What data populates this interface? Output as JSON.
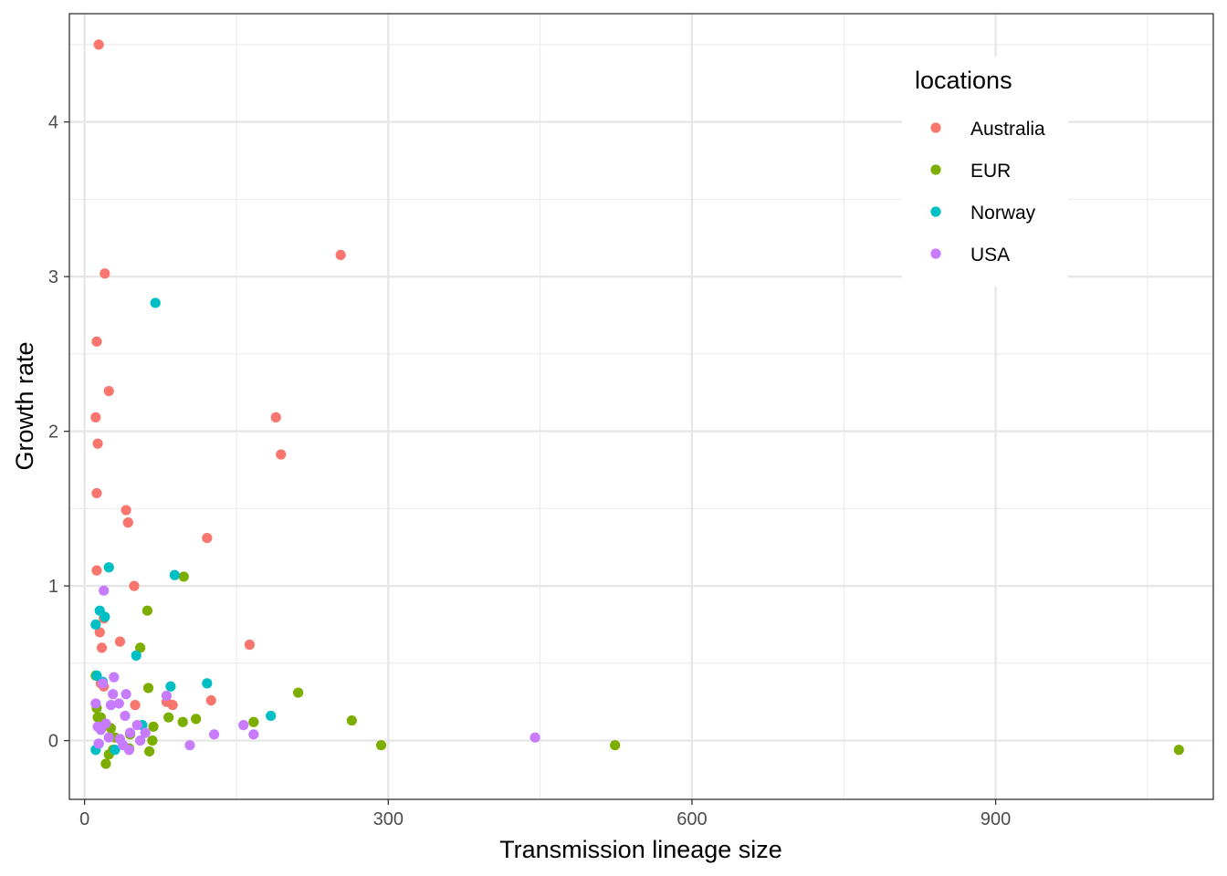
{
  "chart_data": {
    "type": "scatter",
    "xlabel": "Transmission lineage size",
    "ylabel": "Growth rate",
    "xlim": [
      -15,
      1115
    ],
    "ylim": [
      -0.38,
      4.7
    ],
    "x_ticks": [
      0,
      300,
      600,
      900
    ],
    "y_ticks": [
      0,
      1,
      2,
      3,
      4
    ],
    "grid": true,
    "legend": {
      "title": "locations",
      "position": "top-right"
    },
    "series": [
      {
        "name": "Australia",
        "color": "#F8766D",
        "points": [
          [
            14,
            4.5
          ],
          [
            20,
            3.02
          ],
          [
            253,
            3.14
          ],
          [
            12,
            2.58
          ],
          [
            24,
            2.26
          ],
          [
            11,
            2.09
          ],
          [
            189,
            2.09
          ],
          [
            13,
            1.92
          ],
          [
            194,
            1.85
          ],
          [
            12,
            1.6
          ],
          [
            41,
            1.49
          ],
          [
            43,
            1.41
          ],
          [
            121,
            1.31
          ],
          [
            12,
            1.1
          ],
          [
            49,
            1.0
          ],
          [
            19,
            0.79
          ],
          [
            15,
            0.7
          ],
          [
            35,
            0.64
          ],
          [
            17,
            0.6
          ],
          [
            163,
            0.62
          ],
          [
            16,
            0.37
          ],
          [
            19,
            0.35
          ],
          [
            50,
            0.23
          ],
          [
            81,
            0.25
          ],
          [
            87,
            0.23
          ],
          [
            125,
            0.26
          ]
        ]
      },
      {
        "name": "EUR",
        "color": "#7CAE00",
        "points": [
          [
            98,
            1.06
          ],
          [
            62,
            0.84
          ],
          [
            55,
            0.6
          ],
          [
            11,
            0.42
          ],
          [
            63,
            0.34
          ],
          [
            211,
            0.31
          ],
          [
            12,
            0.21
          ],
          [
            13,
            0.15
          ],
          [
            16,
            0.15
          ],
          [
            83,
            0.15
          ],
          [
            110,
            0.14
          ],
          [
            264,
            0.13
          ],
          [
            167,
            0.12
          ],
          [
            97,
            0.12
          ],
          [
            68,
            0.09
          ],
          [
            26,
            0.08
          ],
          [
            45,
            0.04
          ],
          [
            30,
            0.02
          ],
          [
            67,
            0.0
          ],
          [
            293,
            -0.03
          ],
          [
            524,
            -0.03
          ],
          [
            1081,
            -0.06
          ],
          [
            44,
            -0.05
          ],
          [
            64,
            -0.07
          ],
          [
            28,
            -0.06
          ],
          [
            24,
            -0.09
          ],
          [
            21,
            -0.15
          ]
        ]
      },
      {
        "name": "Norway",
        "color": "#00BFC4",
        "points": [
          [
            70,
            2.83
          ],
          [
            24,
            1.12
          ],
          [
            89,
            1.07
          ],
          [
            15,
            0.84
          ],
          [
            20,
            0.8
          ],
          [
            11,
            0.75
          ],
          [
            51,
            0.55
          ],
          [
            12,
            0.42
          ],
          [
            18,
            0.38
          ],
          [
            121,
            0.37
          ],
          [
            85,
            0.35
          ],
          [
            184,
            0.16
          ],
          [
            57,
            0.1
          ],
          [
            14,
            -0.02
          ],
          [
            11,
            -0.06
          ],
          [
            30,
            -0.06
          ]
        ]
      },
      {
        "name": "USA",
        "color": "#C77CFF",
        "points": [
          [
            19,
            0.97
          ],
          [
            29,
            0.41
          ],
          [
            18,
            0.37
          ],
          [
            41,
            0.3
          ],
          [
            28,
            0.3
          ],
          [
            81,
            0.29
          ],
          [
            11,
            0.24
          ],
          [
            34,
            0.24
          ],
          [
            26,
            0.23
          ],
          [
            40,
            0.16
          ],
          [
            21,
            0.11
          ],
          [
            52,
            0.1
          ],
          [
            13,
            0.09
          ],
          [
            16,
            0.07
          ],
          [
            157,
            0.1
          ],
          [
            128,
            0.04
          ],
          [
            167,
            0.04
          ],
          [
            45,
            0.05
          ],
          [
            60,
            0.05
          ],
          [
            24,
            0.02
          ],
          [
            35,
            0.01
          ],
          [
            55,
            0.0
          ],
          [
            445,
            0.02
          ],
          [
            14,
            -0.02
          ],
          [
            38,
            -0.03
          ],
          [
            104,
            -0.03
          ],
          [
            44,
            -0.06
          ]
        ]
      }
    ]
  }
}
